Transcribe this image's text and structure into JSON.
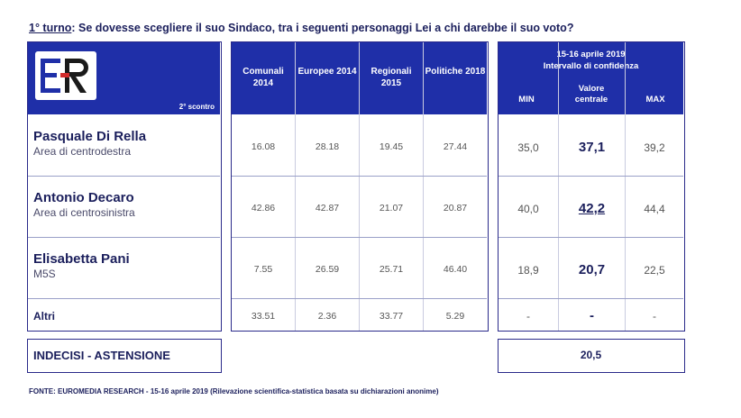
{
  "title": {
    "prefix": "1° turno",
    "question": ": Se dovesse scegliere il suo Sindaco, tra i seguenti personaggi  Lei a chi darebbe il suo voto?"
  },
  "logo": {
    "text": "ER",
    "colors": {
      "e": "#1f2fa8",
      "r": "#1a1a1a",
      "accent": "#d22b2b"
    }
  },
  "left_header": {
    "scontro": "2° scontro"
  },
  "historical_columns": [
    {
      "label": "Comunali 2014"
    },
    {
      "label": "Europee 2014"
    },
    {
      "label": "Regionali 2015"
    },
    {
      "label": "Politiche 2018"
    }
  ],
  "confidence_header": {
    "date": "15-16 aprile 2019",
    "title": "Intervallo di confidenza",
    "min": "MIN",
    "central": "Valore centrale",
    "max": "MAX"
  },
  "candidates": [
    {
      "name": "Pasquale Di Rella",
      "area": "Area di centrodestra",
      "historical": [
        "16.08",
        "28.18",
        "19.45",
        "27.44"
      ],
      "min": "35,0",
      "central": "37,1",
      "max": "39,2"
    },
    {
      "name": "Antonio Decaro",
      "area": "Area di centrosinistra",
      "historical": [
        "42.86",
        "42.87",
        "21.07",
        "20.87"
      ],
      "min": "40,0",
      "central": "42,2",
      "max": "44,4"
    },
    {
      "name": "Elisabetta Pani",
      "area": "M5S",
      "historical": [
        "7.55",
        "26.59",
        "25.71",
        "46.40"
      ],
      "min": "18,9",
      "central": "20,7",
      "max": "22,5"
    }
  ],
  "altri": {
    "label": "Altri",
    "historical": [
      "33.51",
      "2.36",
      "33.77",
      "5.29"
    ],
    "min": "-",
    "central": "-",
    "max": "-"
  },
  "undecided": {
    "label": "INDECISI - ASTENSIONE",
    "value": "20,5"
  },
  "source": "FONTE: EUROMEDIA RESEARCH - 15-16 aprile 2019 (Rilevazione scientifica-statistica basata su dichiarazioni anonime)",
  "colors": {
    "header_blue": "#1f2fa8",
    "text_navy": "#1b1f5c"
  }
}
